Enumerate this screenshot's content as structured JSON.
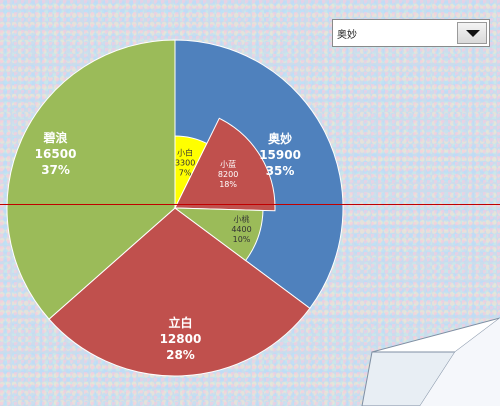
{
  "dropdown": {
    "selected": "奥妙"
  },
  "chart_data": [
    {
      "type": "pie",
      "role": "outer",
      "slices": [
        {
          "label": "奥妙",
          "value": 15900,
          "percent": "35%",
          "color": "#4f81bd"
        },
        {
          "label": "立白",
          "value": 12800,
          "percent": "28%",
          "color": "#c0504d"
        },
        {
          "label": "碧浪",
          "value": 16500,
          "percent": "37%",
          "color": "#9bbb59"
        }
      ]
    },
    {
      "type": "pie",
      "role": "inner",
      "slices": [
        {
          "label": "小白",
          "value": 3300,
          "percent": "7%",
          "color": "#ffff00"
        },
        {
          "label": "小蓝",
          "value": 8200,
          "percent": "18%",
          "color": "#c0504d"
        },
        {
          "label": "小桃",
          "value": 4400,
          "percent": "10%",
          "color": "#9bbb59"
        }
      ]
    }
  ]
}
